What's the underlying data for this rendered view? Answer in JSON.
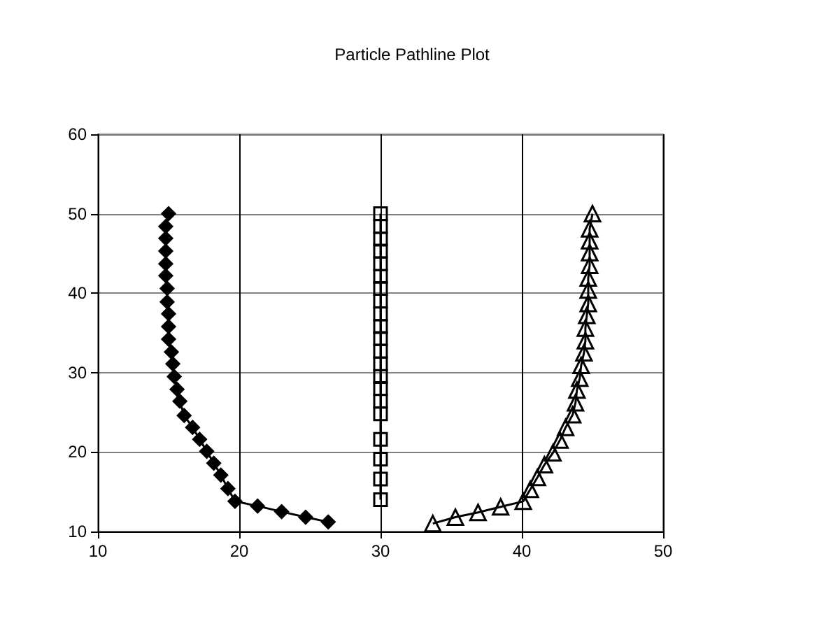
{
  "chart_data": {
    "type": "line",
    "title": "Particle Pathline Plot",
    "xlim": [
      10,
      50
    ],
    "xticks": [
      10,
      20,
      30,
      40,
      50
    ],
    "ylim": [
      10,
      60
    ],
    "yticks": [
      10,
      20,
      30,
      40,
      50,
      60
    ],
    "grid": true,
    "line_style": "solid",
    "series": [
      {
        "color": "#000000",
        "marker": "diamond",
        "x": [
          15,
          14.8,
          14.8,
          14.8,
          14.8,
          14.8,
          14.9,
          14.9,
          15,
          15,
          15,
          15.2,
          15.3,
          15.4,
          15.6,
          15.8,
          16.1,
          16.7,
          17.2,
          17.7,
          18.2,
          18.7,
          19.2,
          19.7,
          21.3,
          23,
          24.7,
          26.3
        ],
        "values": [
          50,
          48.4,
          46.9,
          45.3,
          43.7,
          42.2,
          40.6,
          38.9,
          37.4,
          35.8,
          34.2,
          32.6,
          31.1,
          29.5,
          27.9,
          26.4,
          24.6,
          23.1,
          21.6,
          20.1,
          18.6,
          17.1,
          15.4,
          13.8,
          13.2,
          12.5,
          11.8,
          11.2
        ]
      },
      {
        "color": "#000000",
        "marker": "square",
        "x": [
          30,
          30,
          30,
          30,
          30,
          30,
          30,
          30,
          30,
          30,
          30,
          30,
          30,
          30,
          30,
          30,
          30,
          30,
          30,
          30,
          30
        ],
        "values": [
          50,
          48.4,
          46.8,
          45.3,
          43.7,
          42.1,
          40.6,
          39,
          37.4,
          35.8,
          34.3,
          32.7,
          31.1,
          29.5,
          28,
          26.4,
          24.8,
          21.6,
          19.1,
          16.6,
          14
        ]
      },
      {
        "color": "#000000",
        "marker": "triangle",
        "x": [
          45,
          44.8,
          44.8,
          44.8,
          44.8,
          44.7,
          44.7,
          44.7,
          44.6,
          44.5,
          44.5,
          44.4,
          44.2,
          44.1,
          43.9,
          43.8,
          43.6,
          43.1,
          42.7,
          42.2,
          41.6,
          41.1,
          40.6,
          40.1,
          38.5,
          36.9,
          35.3,
          33.7
        ],
        "values": [
          50,
          48.1,
          46.6,
          45.1,
          43.5,
          41.9,
          40.4,
          38.7,
          37.2,
          35.6,
          34,
          32.5,
          30.9,
          29.3,
          27.8,
          26.2,
          24.7,
          23.1,
          21.5,
          19.9,
          18.4,
          16.8,
          15.3,
          13.8,
          13.1,
          12.4,
          11.8,
          11
        ]
      }
    ]
  }
}
